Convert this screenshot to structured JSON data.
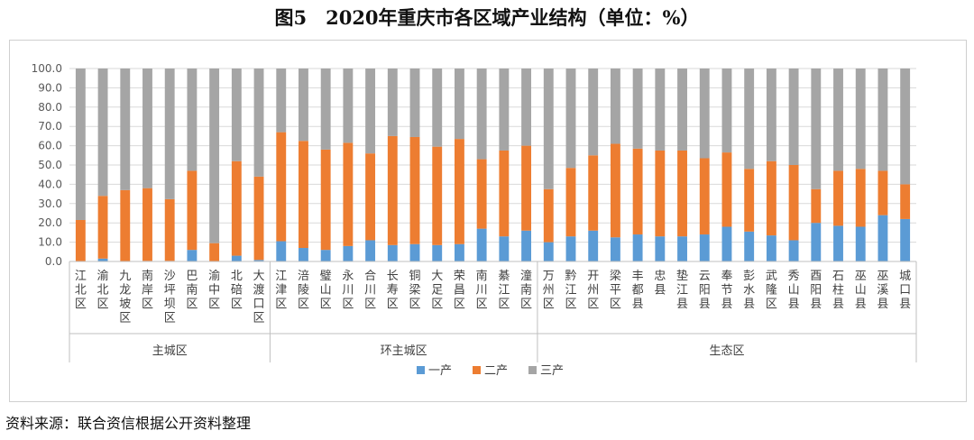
{
  "title": "图5　2020年重庆市各区域产业结构（单位：%）",
  "source": "资料来源：联合资信根据公开资料整理",
  "chart_data": {
    "type": "bar",
    "stacked": true,
    "ylim": [
      0,
      100
    ],
    "y_ticks": [
      "0.0",
      "10.0",
      "20.0",
      "30.0",
      "40.0",
      "50.0",
      "60.0",
      "70.0",
      "80.0",
      "90.0",
      "100.0"
    ],
    "grid": true,
    "legend_position": "bottom",
    "categories": [
      "江北区",
      "渝北区",
      "九龙坡区",
      "南岸区",
      "沙坪坝区",
      "巴南区",
      "渝中区",
      "北碚区",
      "大渡口区",
      "江津区",
      "涪陵区",
      "璧山区",
      "永川区",
      "合川区",
      "长寿区",
      "铜梁区",
      "大足区",
      "荣昌区",
      "南川区",
      "綦江区",
      "潼南区",
      "万州区",
      "黔江区",
      "开州区",
      "梁平区",
      "丰都县",
      "忠县",
      "垫江县",
      "云阳县",
      "奉节县",
      "彭水县",
      "武隆区",
      "秀山县",
      "酉阳县",
      "石柱县",
      "巫山县",
      "巫溪县",
      "城口县"
    ],
    "groups": [
      {
        "name": "主城区",
        "count": 9
      },
      {
        "name": "环主城区",
        "count": 12
      },
      {
        "name": "生态区",
        "count": 17
      }
    ],
    "series": [
      {
        "name": "一产",
        "color": "#5b9bd5",
        "values": [
          0.2,
          1.5,
          0.2,
          0.3,
          0.3,
          6.0,
          0.0,
          3.0,
          0.8,
          10.5,
          7.0,
          6.0,
          8.0,
          11.0,
          8.5,
          9.0,
          8.5,
          9.0,
          17.0,
          13.0,
          16.0,
          10.0,
          13.0,
          16.0,
          12.5,
          14.0,
          13.0,
          13.0,
          14.0,
          18.0,
          15.5,
          13.5,
          11.0,
          20.0,
          18.5,
          18.0,
          24.0,
          22.0
        ]
      },
      {
        "name": "二产",
        "color": "#ed7d31",
        "values": [
          21.3,
          32.5,
          36.8,
          37.7,
          32.0,
          41.0,
          9.5,
          49.0,
          43.2,
          56.5,
          55.5,
          52.0,
          53.5,
          45.0,
          56.5,
          55.5,
          51.0,
          54.5,
          36.0,
          44.5,
          44.0,
          27.5,
          35.5,
          39.0,
          48.5,
          44.5,
          44.5,
          44.5,
          39.5,
          38.5,
          32.5,
          38.5,
          39.0,
          17.5,
          28.5,
          30.0,
          23.0,
          18.0
        ]
      },
      {
        "name": "三产",
        "color": "#a5a5a5",
        "values": [
          78.5,
          66.0,
          63.0,
          62.0,
          67.7,
          53.0,
          90.5,
          48.0,
          56.0,
          33.0,
          37.5,
          42.0,
          38.5,
          44.0,
          35.0,
          35.5,
          40.5,
          36.5,
          47.0,
          42.5,
          40.0,
          62.5,
          51.5,
          45.0,
          39.0,
          41.5,
          42.5,
          42.5,
          46.5,
          43.5,
          52.0,
          48.0,
          50.0,
          62.5,
          53.0,
          52.0,
          53.0,
          60.0
        ]
      }
    ]
  }
}
